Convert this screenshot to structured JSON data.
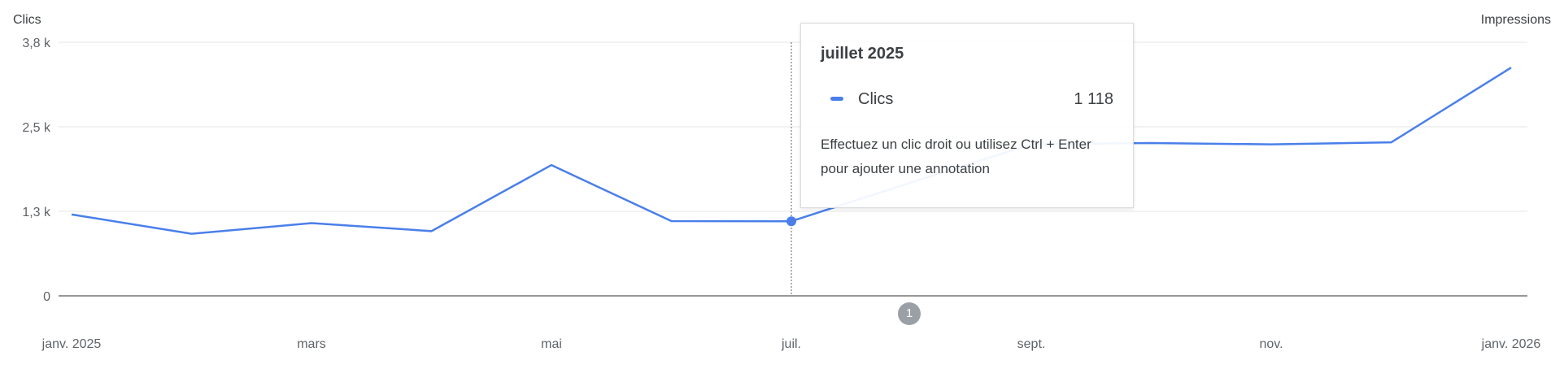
{
  "chart_data": {
    "type": "line",
    "y_title": "Clics",
    "y2_title": "Impressions",
    "x_ticks": [
      "janv. 2025",
      "mars",
      "mai",
      "juil.",
      "sept.",
      "nov.",
      "janv. 2026"
    ],
    "y_ticks": [
      "3,8 k",
      "2,5 k",
      "1,3 k",
      "0"
    ],
    "ylim": [
      0,
      3800
    ],
    "grid": true,
    "legend": "none",
    "series": [
      {
        "name": "Clics",
        "color": "#4a7fea",
        "x": [
          "janv. 2025",
          "févr. 2025",
          "mars 2025",
          "avr. 2025",
          "mai 2025",
          "juin 2025",
          "juil. 2025",
          "août 2025",
          "sept. 2025",
          "oct. 2025",
          "nov. 2025",
          "déc. 2025",
          "janv. 2026"
        ],
        "values": [
          1220,
          930,
          1090,
          970,
          1960,
          1120,
          1118,
          1700,
          2270,
          2290,
          2270,
          2300,
          3420
        ]
      }
    ]
  },
  "tooltip": {
    "title": "juillet 2025",
    "series": "Clics",
    "value": "1 118",
    "hint": "Effectuez un clic droit ou utilisez Ctrl + Enter pour ajouter une annotation",
    "active_index": 6
  },
  "annotation_marker": {
    "label": "1"
  }
}
